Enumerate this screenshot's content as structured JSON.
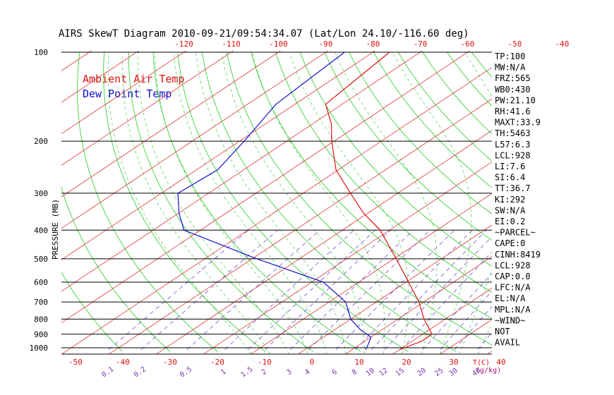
{
  "chart_data": {
    "type": "line",
    "subtype": "skew-t log-p",
    "title": "AIRS SkewT Diagram 2010-09-21/09:54:34.07 (Lat/Lon 24.10/-116.60 deg)",
    "ylabel": "PRESSURE (MB)",
    "xlabel_right": "T(C)",
    "mixing_ratio_unit": "(g/kg)",
    "pressure_ticks": [
      100,
      200,
      300,
      400,
      500,
      600,
      700,
      800,
      900,
      1000
    ],
    "pressure_ticks_text": [
      "100",
      "200",
      "300",
      "400",
      "500",
      "600",
      "700",
      "800",
      "900",
      "1000"
    ],
    "temp_ticks_top": [
      -120,
      -110,
      -100,
      -90,
      -80,
      -70,
      -60,
      -50,
      -40
    ],
    "temp_ticks_top_text": [
      "-120",
      "-110",
      "-100",
      "-90",
      "-80",
      "-70",
      "-60",
      "-50",
      "-40"
    ],
    "temp_ticks_bottom": [
      -50,
      -40,
      -30,
      -20,
      -10,
      0,
      10,
      20,
      30,
      40
    ],
    "temp_ticks_bottom_text": [
      "-50",
      "-40",
      "-30",
      "-20",
      "-10",
      "0",
      "10",
      "20",
      "30",
      "40"
    ],
    "mixing_ratio_labels": [
      "0.1",
      "0.2",
      "0.5",
      "1",
      "1.5",
      "2",
      "3",
      "4",
      "6",
      "8",
      "10",
      "12",
      "15",
      "20",
      "25",
      "30",
      "40"
    ],
    "legend": [
      {
        "name": "Ambient Air Temp",
        "color": "#dd1111"
      },
      {
        "name": "Dew Point Temp",
        "color": "#1111cc"
      }
    ],
    "series": [
      {
        "name": "Ambient Air Temp",
        "color": "#dd1111",
        "points": [
          {
            "p": 100,
            "t": -76.5
          },
          {
            "p": 150,
            "t": -73.5
          },
          {
            "p": 175,
            "t": -66.0
          },
          {
            "p": 200,
            "t": -60.5
          },
          {
            "p": 250,
            "t": -50.5
          },
          {
            "p": 300,
            "t": -40.0
          },
          {
            "p": 350,
            "t": -31.0
          },
          {
            "p": 400,
            "t": -22.0
          },
          {
            "p": 500,
            "t": -9.5
          },
          {
            "p": 600,
            "t": 0.5
          },
          {
            "p": 700,
            "t": 9.0
          },
          {
            "p": 800,
            "t": 15.5
          },
          {
            "p": 900,
            "t": 22.0
          },
          {
            "p": 950,
            "t": 22.0
          },
          {
            "p": 1000,
            "t": 20.5
          },
          {
            "p": 1015,
            "t": 20.0
          }
        ]
      },
      {
        "name": "Dew Point Temp",
        "color": "#1111cc",
        "points": [
          {
            "p": 100,
            "t": -86.0
          },
          {
            "p": 150,
            "t": -84.0
          },
          {
            "p": 200,
            "t": -79.0
          },
          {
            "p": 250,
            "t": -75.5
          },
          {
            "p": 300,
            "t": -76.5
          },
          {
            "p": 350,
            "t": -70.0
          },
          {
            "p": 400,
            "t": -63.5
          },
          {
            "p": 500,
            "t": -39.0
          },
          {
            "p": 600,
            "t": -17.5
          },
          {
            "p": 700,
            "t": -6.5
          },
          {
            "p": 800,
            "t": 0.0
          },
          {
            "p": 870,
            "t": 5.5
          },
          {
            "p": 920,
            "t": 10.0
          },
          {
            "p": 1000,
            "t": 12.5
          },
          {
            "p": 1015,
            "t": 12.8
          }
        ]
      }
    ],
    "indices": [
      "TP:100",
      "MW:N/A",
      "FRZ:565",
      "WB0:430",
      "PW:21.10",
      "RH:41.6",
      "MAXT:33.9",
      "TH:5463",
      "L57:6.3",
      "LCL:928",
      "LI:7.6",
      "SI:6.4",
      "TT:36.7",
      "KI:292",
      "SW:N/A",
      "EI:0.2",
      "~PARCEL~",
      "CAPE:0",
      "CINH:8419",
      "LCL:928",
      "CAP:0.0",
      "LFC:N/A",
      "EL:N/A",
      "MPL:N/A",
      "~WIND~",
      "NOT",
      "AVAIL"
    ]
  }
}
